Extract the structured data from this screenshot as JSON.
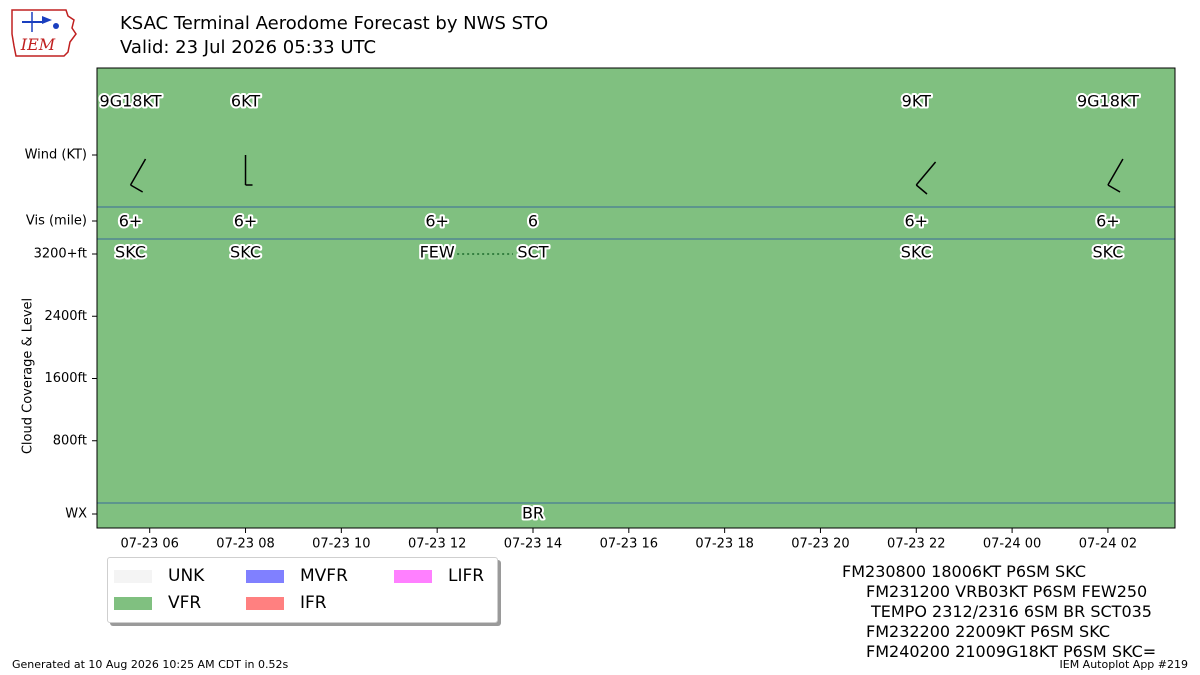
{
  "header": {
    "logo_text": "IEM",
    "title": "KSAC Terminal Aerodome Forecast by NWS STO",
    "subtitle": "Valid: 23 Jul 2026 05:33 UTC"
  },
  "chart_data": {
    "type": "timeline",
    "title": "KSAC Terminal Aerodome Forecast by NWS STO",
    "ylabel": "Cloud Coverage & Level",
    "row_labels": {
      "wind": "Wind (KT)",
      "vis": "Vis (mile)",
      "wx": "WX"
    },
    "cloud_axis": {
      "ylim": [
        0,
        3200
      ],
      "ticks": [
        "800ft",
        "1600ft",
        "2400ft",
        "3200+ft"
      ],
      "tick_values": [
        800,
        1600,
        2400,
        3200
      ]
    },
    "x_axis": {
      "range_hours": [
        4.9,
        27.4
      ],
      "ticks": [
        {
          "label": "07-23 06",
          "hour": 6
        },
        {
          "label": "07-23 08",
          "hour": 8
        },
        {
          "label": "07-23 10",
          "hour": 10
        },
        {
          "label": "07-23 12",
          "hour": 12
        },
        {
          "label": "07-23 14",
          "hour": 14
        },
        {
          "label": "07-23 16",
          "hour": 16
        },
        {
          "label": "07-23 18",
          "hour": 18
        },
        {
          "label": "07-23 20",
          "hour": 20
        },
        {
          "label": "07-23 22",
          "hour": 22
        },
        {
          "label": "07-24 00",
          "hour": 24
        },
        {
          "label": "07-24 02",
          "hour": 26
        }
      ]
    },
    "background_category": "VFR",
    "wind": [
      {
        "hour": 5.6,
        "label": "9G18KT",
        "dir": 210,
        "speed": 9
      },
      {
        "hour": 8.0,
        "label": "6KT",
        "dir": 180,
        "speed": 6
      },
      {
        "hour": 22.0,
        "label": "9KT",
        "dir": 220,
        "speed": 9
      },
      {
        "hour": 26.0,
        "label": "9G18KT",
        "dir": 210,
        "speed": 9
      }
    ],
    "visibility": [
      {
        "hour": 5.6,
        "label": "6+"
      },
      {
        "hour": 8.0,
        "label": "6+"
      },
      {
        "hour": 12.0,
        "label": "6+"
      },
      {
        "hour": 14.0,
        "label": "6"
      },
      {
        "hour": 22.0,
        "label": "6+"
      },
      {
        "hour": 26.0,
        "label": "6+"
      }
    ],
    "clouds": [
      {
        "hour": 5.6,
        "label": "SKC",
        "level": 3200
      },
      {
        "hour": 8.0,
        "label": "SKC",
        "level": 3200
      },
      {
        "hour": 12.0,
        "label": "FEW",
        "level": 3200
      },
      {
        "hour": 14.0,
        "label": "SCT",
        "level": 3200
      },
      {
        "hour": 22.0,
        "label": "SKC",
        "level": 3200
      },
      {
        "hour": 26.0,
        "label": "SKC",
        "level": 3200
      }
    ],
    "cloud_links": [
      {
        "from_hour": 12.0,
        "to_hour": 14.0,
        "level": 3200
      }
    ],
    "weather": [
      {
        "hour": 14.0,
        "label": "BR"
      }
    ],
    "legend": [
      {
        "label": "UNK",
        "color": "#f4f4f4"
      },
      {
        "label": "VFR",
        "color": "#80c080"
      },
      {
        "label": "MVFR",
        "color": "#8080ff"
      },
      {
        "label": "IFR",
        "color": "#ff8080"
      },
      {
        "label": "LIFR",
        "color": "#ff80ff"
      }
    ],
    "colors": {
      "vfr_fill": "#80c080",
      "divider": "#3a6a9a"
    }
  },
  "taf_lines": [
    "FM230800 18006KT P6SM SKC",
    "FM231200 VRB03KT P6SM FEW250",
    "TEMPO 2312/2316 6SM BR SCT035",
    "FM232200 22009KT P6SM SKC",
    "FM240200 21009G18KT P6SM SKC="
  ],
  "footer": {
    "generated": "Generated at 10 Aug 2026 10:25 AM CDT in 0.52s",
    "app": "IEM Autoplot App #219"
  }
}
